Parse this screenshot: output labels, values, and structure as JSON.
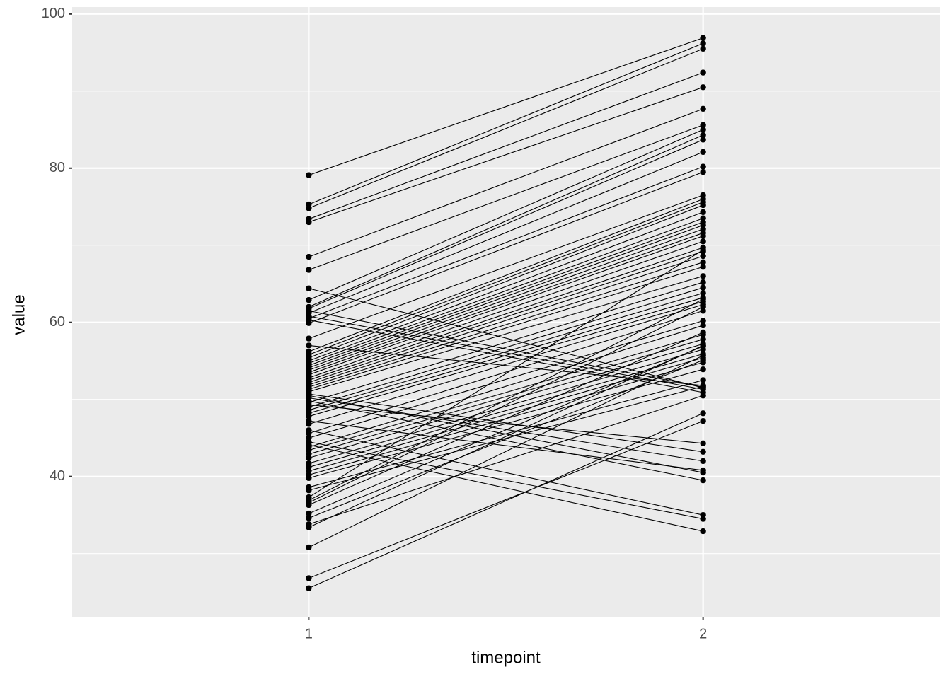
{
  "chart_data": {
    "type": "line",
    "x_label": "timepoint",
    "y_label": "value",
    "x": [
      1,
      2
    ],
    "xlim": [
      0.4,
      2.6
    ],
    "xticks": [
      1,
      2
    ],
    "ylim": [
      21.8,
      100.9
    ],
    "yticks": [
      40,
      60,
      80,
      100
    ],
    "y_minor_ticks": [
      30,
      50,
      70,
      90
    ],
    "grid": true,
    "color": "#000000",
    "series": [
      {
        "values": [
          79.1,
          96.9
        ]
      },
      {
        "values": [
          75.3,
          96.2
        ]
      },
      {
        "values": [
          74.8,
          95.5
        ]
      },
      {
        "values": [
          73.4,
          92.4
        ]
      },
      {
        "values": [
          73.0,
          90.5
        ]
      },
      {
        "values": [
          68.5,
          87.7
        ]
      },
      {
        "values": [
          66.8,
          85.6
        ]
      },
      {
        "values": [
          64.4,
          51.5
        ]
      },
      {
        "values": [
          62.9,
          85.0
        ]
      },
      {
        "values": [
          62.0,
          84.3
        ]
      },
      {
        "values": [
          61.8,
          83.7
        ]
      },
      {
        "values": [
          61.5,
          51.6
        ]
      },
      {
        "values": [
          61.2,
          82.1
        ]
      },
      {
        "values": [
          60.8,
          51.3
        ]
      },
      {
        "values": [
          60.5,
          80.2
        ]
      },
      {
        "values": [
          60.3,
          50.9
        ]
      },
      {
        "values": [
          59.9,
          79.5
        ]
      },
      {
        "values": [
          57.9,
          76.5
        ]
      },
      {
        "values": [
          57.0,
          51.8
        ]
      },
      {
        "values": [
          56.2,
          76.0
        ]
      },
      {
        "values": [
          55.8,
          75.6
        ]
      },
      {
        "values": [
          55.4,
          75.2
        ]
      },
      {
        "values": [
          55.0,
          74.3
        ]
      },
      {
        "values": [
          54.7,
          73.5
        ]
      },
      {
        "values": [
          54.4,
          73.0
        ]
      },
      {
        "values": [
          54.1,
          72.6
        ]
      },
      {
        "values": [
          53.8,
          72.1
        ]
      },
      {
        "values": [
          53.5,
          71.6
        ]
      },
      {
        "values": [
          53.2,
          71.2
        ]
      },
      {
        "values": [
          52.8,
          70.5
        ]
      },
      {
        "values": [
          52.5,
          69.7
        ]
      },
      {
        "values": [
          52.2,
          69.2
        ]
      },
      {
        "values": [
          51.9,
          68.6
        ]
      },
      {
        "values": [
          51.6,
          67.8
        ]
      },
      {
        "values": [
          51.3,
          67.2
        ]
      },
      {
        "values": [
          51.0,
          66.0
        ]
      },
      {
        "values": [
          50.7,
          43.2
        ]
      },
      {
        "values": [
          50.5,
          40.5
        ]
      },
      {
        "values": [
          50.2,
          42.0
        ]
      },
      {
        "values": [
          49.8,
          39.5
        ]
      },
      {
        "values": [
          49.6,
          65.2
        ]
      },
      {
        "values": [
          49.3,
          44.3
        ]
      },
      {
        "values": [
          49.0,
          64.5
        ]
      },
      {
        "values": [
          48.6,
          63.8
        ]
      },
      {
        "values": [
          48.2,
          63.2
        ]
      },
      {
        "values": [
          47.8,
          62.7
        ]
      },
      {
        "values": [
          47.2,
          40.8
        ]
      },
      {
        "values": [
          46.8,
          62.3
        ]
      },
      {
        "values": [
          46.0,
          35.0
        ]
      },
      {
        "values": [
          45.6,
          61.5
        ]
      },
      {
        "values": [
          45.0,
          60.2
        ]
      },
      {
        "values": [
          44.5,
          34.5
        ]
      },
      {
        "values": [
          44.1,
          32.9
        ]
      },
      {
        "values": [
          43.8,
          59.6
        ]
      },
      {
        "values": [
          43.4,
          58.4
        ]
      },
      {
        "values": [
          42.9,
          57.8
        ]
      },
      {
        "values": [
          42.4,
          57.2
        ]
      },
      {
        "values": [
          41.7,
          56.5
        ]
      },
      {
        "values": [
          41.2,
          55.9
        ]
      },
      {
        "values": [
          40.7,
          55.4
        ]
      },
      {
        "values": [
          40.2,
          54.8
        ]
      },
      {
        "values": [
          39.8,
          53.9
        ]
      },
      {
        "values": [
          38.6,
          52.5
        ]
      },
      {
        "values": [
          38.2,
          51.7
        ]
      },
      {
        "values": [
          37.3,
          69.4
        ]
      },
      {
        "values": [
          36.9,
          63.0
        ]
      },
      {
        "values": [
          36.6,
          62.0
        ]
      },
      {
        "values": [
          36.3,
          58.7
        ]
      },
      {
        "values": [
          35.2,
          56.9
        ]
      },
      {
        "values": [
          34.6,
          55.1
        ]
      },
      {
        "values": [
          33.8,
          50.5
        ]
      },
      {
        "values": [
          33.4,
          57.0
        ]
      },
      {
        "values": [
          30.8,
          55.7
        ]
      },
      {
        "values": [
          26.8,
          47.2
        ]
      },
      {
        "values": [
          25.5,
          48.2
        ]
      }
    ]
  }
}
